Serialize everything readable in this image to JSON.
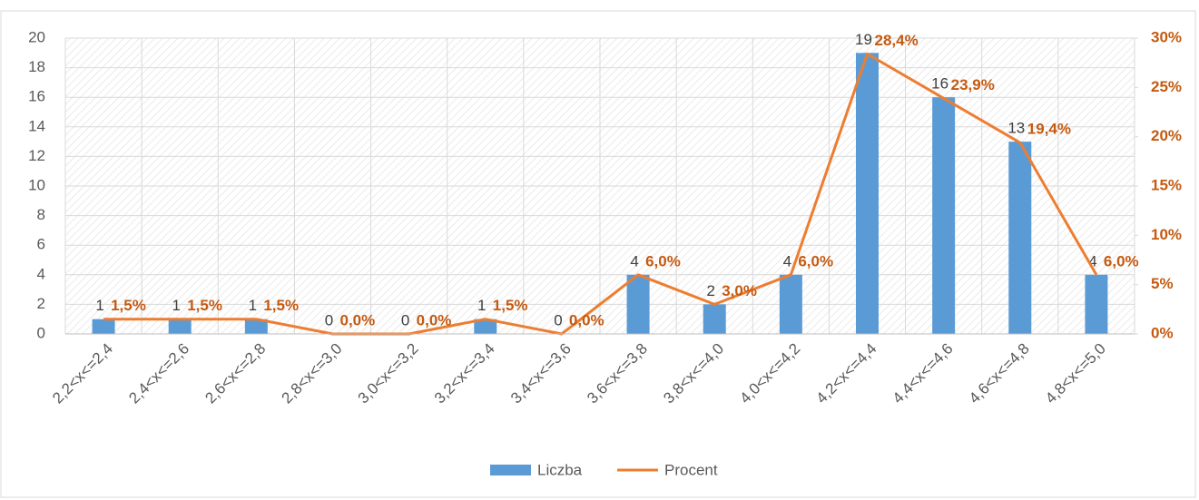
{
  "chart_data": {
    "type": "bar",
    "categories": [
      "2,2<x<=2,4",
      "2,4<x<=2,6",
      "2,6<x<=2,8",
      "2,8<x<=3,0",
      "3,0<x<=3,2",
      "3,2<x<=3,4",
      "3,4<x<=3,6",
      "3,6<x<=3,8",
      "3,8<x<=4,0",
      "4,0<x<=4,2",
      "4,2<x<=4,4",
      "4,4<x<=4,6",
      "4,6<x<=4,8",
      "4,8<x<=5,0"
    ],
    "series": [
      {
        "name": "Liczba",
        "type": "bar",
        "color": "#5b9bd5",
        "values": [
          1,
          1,
          1,
          0,
          0,
          1,
          0,
          4,
          2,
          4,
          19,
          16,
          13,
          4
        ]
      },
      {
        "name": "Procent",
        "type": "line",
        "axis": "y2",
        "color": "#ed7d31",
        "values": [
          1.5,
          1.5,
          1.5,
          0,
          0,
          1.5,
          0,
          6,
          3,
          6,
          28.4,
          23.9,
          19.4,
          6
        ],
        "value_labels": [
          "1,5%",
          "1,5%",
          "1,5%",
          "0,0%",
          "0,0%",
          "1,5%",
          "0,0%",
          "6,0%",
          "3,0%",
          "6,0%",
          "28,4%",
          "23,9%",
          "19,4%",
          "6,0%"
        ]
      }
    ],
    "ylim": [
      0,
      20
    ],
    "yticks": [
      0,
      2,
      4,
      6,
      8,
      10,
      12,
      14,
      16,
      18,
      20
    ],
    "y2lim": [
      0,
      30
    ],
    "y2ticks": [
      {
        "value": 0,
        "label": "0%"
      },
      {
        "value": 5,
        "label": "5%"
      },
      {
        "value": 10,
        "label": "10%"
      },
      {
        "value": 15,
        "label": "15%"
      },
      {
        "value": 20,
        "label": "20%"
      },
      {
        "value": 25,
        "label": "25%"
      },
      {
        "value": 30,
        "label": "30%"
      }
    ],
    "grid": true,
    "legend": "bottom"
  }
}
